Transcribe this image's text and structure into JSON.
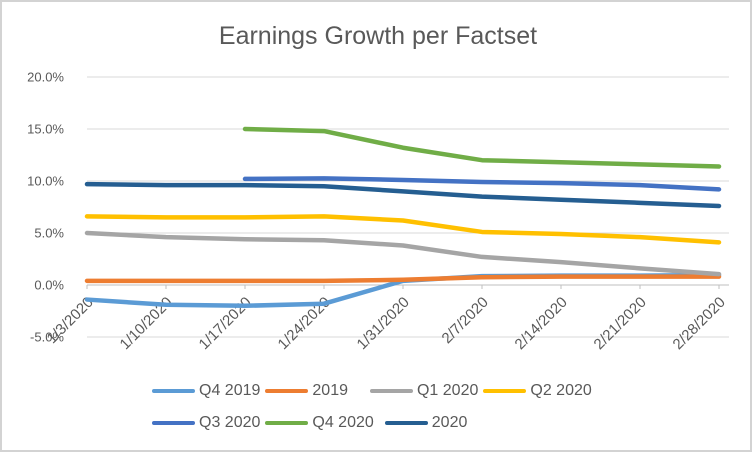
{
  "chart_data": {
    "type": "line",
    "title": "Earnings Growth per Factset",
    "unit": "percent",
    "categories": [
      "1/3/2020",
      "1/10/2020",
      "1/17/2020",
      "1/24/2020",
      "1/31/2020",
      "2/7/2020",
      "2/14/2020",
      "2/21/2020",
      "2/28/2020"
    ],
    "series": [
      {
        "name": "Q4 2019",
        "color": "#5B9BD5",
        "values": [
          -1.4,
          -1.9,
          -2.0,
          -1.8,
          0.4,
          0.85,
          0.9,
          0.9,
          0.95
        ]
      },
      {
        "name": "2019",
        "color": "#ED7D31",
        "values": [
          0.4,
          0.4,
          0.4,
          0.4,
          0.5,
          0.75,
          0.8,
          0.8,
          0.8
        ]
      },
      {
        "name": "Q1 2020",
        "color": "#A5A5A5",
        "values": [
          5.0,
          4.6,
          4.4,
          4.3,
          3.8,
          2.7,
          2.2,
          1.6,
          1.05
        ]
      },
      {
        "name": "Q2 2020",
        "color": "#FFC000",
        "values": [
          6.6,
          6.5,
          6.5,
          6.6,
          6.2,
          5.1,
          4.9,
          4.6,
          4.1
        ]
      },
      {
        "name": "Q3 2020",
        "color": "#4472C4",
        "values": [
          null,
          null,
          10.2,
          10.25,
          10.1,
          9.9,
          9.8,
          9.6,
          9.2
        ]
      },
      {
        "name": "Q4 2020",
        "color": "#70AD47",
        "values": [
          null,
          null,
          15.0,
          14.8,
          13.2,
          12.0,
          11.8,
          11.6,
          11.4
        ]
      },
      {
        "name": "2020",
        "color": "#255E91",
        "values": [
          9.7,
          9.6,
          9.6,
          9.5,
          9.0,
          8.5,
          8.2,
          7.9,
          7.6
        ]
      }
    ],
    "y_axis": {
      "min": -5,
      "max": 20,
      "step": 5,
      "tick_labels": [
        "20.0%",
        "15.0%",
        "10.0%",
        "5.0%",
        "0.0%",
        "-5.0%"
      ],
      "tick_values": [
        20,
        15,
        10,
        5,
        0,
        -5
      ]
    },
    "x_axis": {
      "label_rotation_deg": 45
    },
    "legend": {
      "position": "bottom",
      "rows": [
        [
          0,
          1,
          2,
          3
        ],
        [
          4,
          5,
          6
        ]
      ]
    },
    "grid": true
  },
  "colors": {
    "title_text": "#595959",
    "axis_text": "#595959",
    "gridline": "#D9D9D9",
    "axis_line": "#BFBFBF",
    "background": "#FFFFFF",
    "border": "#D3D3D3"
  }
}
